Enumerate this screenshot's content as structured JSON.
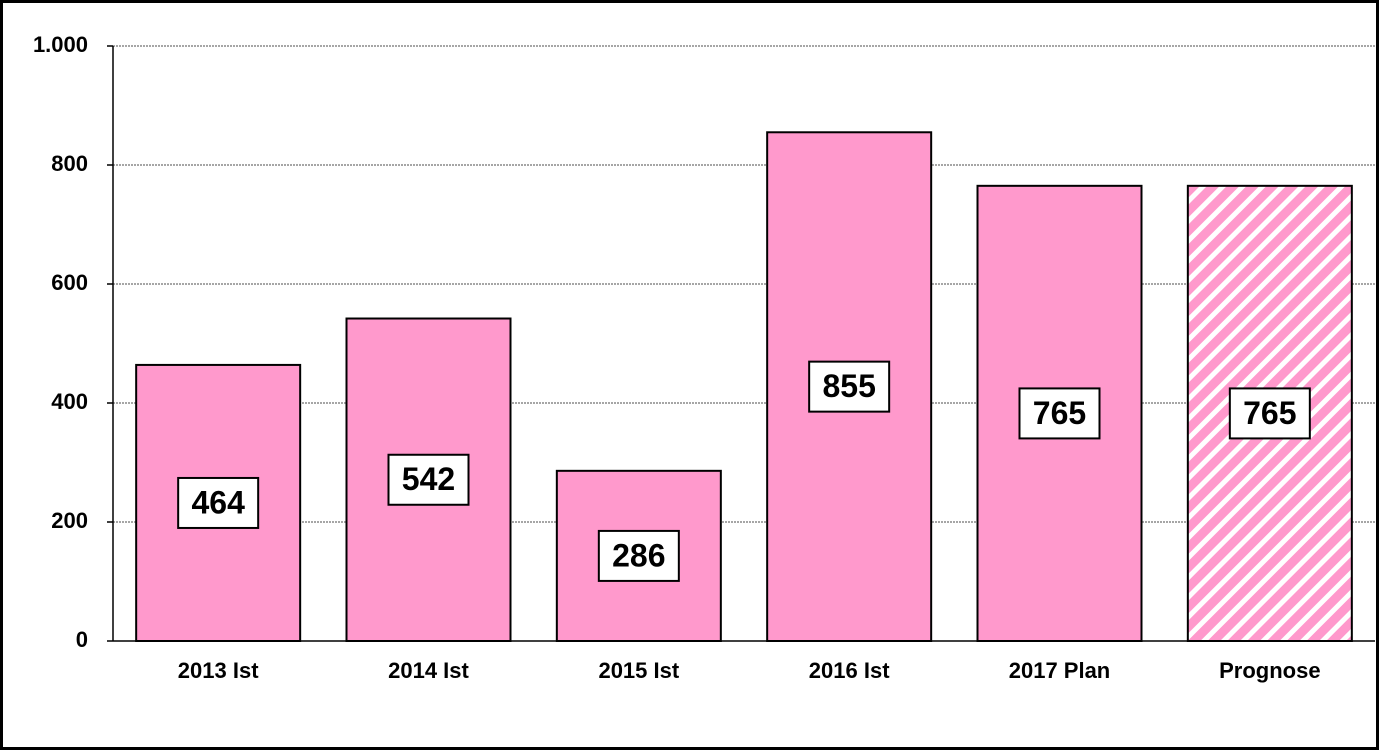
{
  "chart_data": {
    "type": "bar",
    "categories": [
      "2013 Ist",
      "2014 Ist",
      "2015 Ist",
      "2016 Ist",
      "2017 Plan",
      "Prognose"
    ],
    "values": [
      464,
      542,
      286,
      855,
      765,
      765
    ],
    "color": "#ff99cc",
    "hatch": [
      false,
      false,
      false,
      false,
      false,
      true
    ],
    "ylim": [
      0,
      1000
    ],
    "yticks": [
      0,
      200,
      400,
      600,
      800,
      {
        "value": 1000,
        "label": "1.000"
      }
    ],
    "grid": true
  }
}
